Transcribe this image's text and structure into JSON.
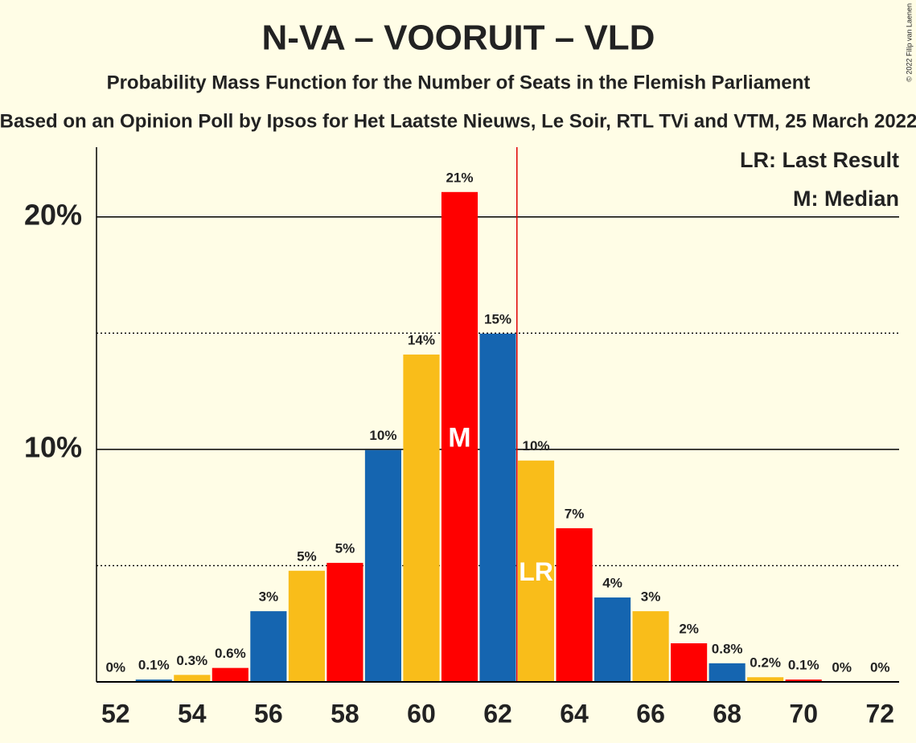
{
  "chart_data": {
    "type": "bar",
    "title": "N-VA – VOORUIT – VLD",
    "subtitle": "Probability Mass Function for the Number of Seats in the Flemish Parliament",
    "subtitle2": "Based on an Opinion Poll by Ipsos for Het Laatste Nieuws, Le Soir, RTL TVi and VTM, 25 March 2022",
    "copyright": "© 2022 Filip van Laenen",
    "x": [
      52,
      53,
      54,
      55,
      56,
      57,
      58,
      59,
      60,
      61,
      62,
      63,
      64,
      65,
      66,
      67,
      68,
      69,
      70,
      71,
      72
    ],
    "values": [
      0,
      0.1,
      0.3,
      0.6,
      3.04,
      4.78,
      5.12,
      9.97,
      14.08,
      21.07,
      14.98,
      9.52,
      6.61,
      3.63,
      3.04,
      1.66,
      0.8,
      0.2,
      0.1,
      0,
      0
    ],
    "value_labels": [
      "0%",
      "0.1%",
      "0.3%",
      "0.6%",
      "3%",
      "5%",
      "5%",
      "10%",
      "14%",
      "21%",
      "15%",
      "10%",
      "7%",
      "4%",
      "3%",
      "2%",
      "0.8%",
      "0.2%",
      "0.1%",
      "0%",
      "0%"
    ],
    "colors": [
      "#ff0000",
      "#1565b0",
      "#f9bd1a",
      "#ff0000",
      "#1565b0",
      "#f9bd1a",
      "#ff0000",
      "#1565b0",
      "#f9bd1a",
      "#ff0000",
      "#1565b0",
      "#f9bd1a",
      "#ff0000",
      "#1565b0",
      "#f9bd1a",
      "#ff0000",
      "#1565b0",
      "#f9bd1a",
      "#ff0000",
      "#1565b0",
      "#f9bd1a"
    ],
    "xlim": [
      51.5,
      72.5
    ],
    "xticks": [
      52,
      54,
      56,
      58,
      60,
      62,
      64,
      66,
      68,
      70,
      72
    ],
    "ylim": [
      0,
      23
    ],
    "yticks": [
      {
        "value": 10,
        "label": "10%"
      },
      {
        "value": 20,
        "label": "20%"
      }
    ],
    "minor_yticks": [
      5,
      15
    ],
    "grid": true,
    "median": {
      "x": 61,
      "label": "M"
    },
    "last_result": {
      "x": 63,
      "label": "LR",
      "line_color": "#e00000"
    },
    "legend": [
      "LR: Last Result",
      "M: Median"
    ]
  }
}
